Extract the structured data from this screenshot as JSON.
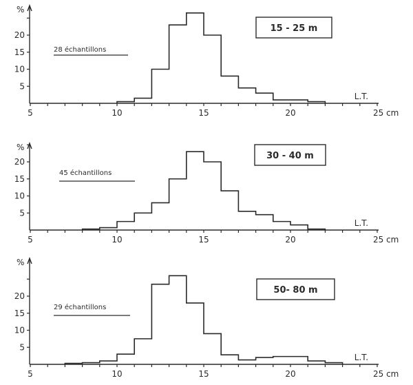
{
  "chart_data": [
    {
      "type": "bar",
      "subtype": "histogram-step",
      "title": "15 - 25 m",
      "annotation": "28 échantillons",
      "xlabel": "L.T.",
      "x_unit": "cm",
      "ylabel": "%",
      "xlim": [
        5,
        25
      ],
      "ylim": [
        0,
        27
      ],
      "x_tick_labels": [
        "5",
        "10",
        "15",
        "20",
        "25 cm"
      ],
      "y_tick_labels": [
        "5",
        "10",
        "15",
        "20"
      ],
      "bin_width": 1,
      "bins_start": [
        10,
        11,
        12,
        13,
        14,
        15,
        16,
        17,
        18,
        19,
        20,
        21
      ],
      "values": [
        0.5,
        1.5,
        10,
        23,
        26.5,
        20,
        8,
        4.5,
        3,
        1,
        1,
        0.5
      ]
    },
    {
      "type": "bar",
      "subtype": "histogram-step",
      "title": "30 - 40 m",
      "annotation": "45 échantillons",
      "xlabel": "L.T.",
      "x_unit": "cm",
      "ylabel": "%",
      "xlim": [
        5,
        25
      ],
      "ylim": [
        0,
        25
      ],
      "x_tick_labels": [
        "5",
        "10",
        "15",
        "20",
        "25 cm"
      ],
      "y_tick_labels": [
        "5",
        "10",
        "15",
        "20"
      ],
      "bin_width": 1,
      "bins_start": [
        8,
        9,
        10,
        11,
        12,
        13,
        14,
        15,
        16,
        17,
        18,
        19,
        20,
        21
      ],
      "values": [
        0.3,
        0.7,
        2.5,
        5,
        8,
        15,
        23,
        20,
        11.5,
        5.5,
        4.5,
        2.5,
        1.5,
        0.3
      ]
    },
    {
      "type": "bar",
      "subtype": "histogram-step",
      "title": "50- 80 m",
      "annotation": "29 échantillons",
      "xlabel": "L.T.",
      "x_unit": "cm",
      "ylabel": "%",
      "xlim": [
        5,
        25
      ],
      "ylim": [
        0,
        27
      ],
      "x_tick_labels": [
        "5",
        "10",
        "15",
        "20",
        "25 cm"
      ],
      "y_tick_labels": [
        "5",
        "10",
        "15",
        "20"
      ],
      "bin_width": 1,
      "bins_start": [
        7,
        8,
        9,
        10,
        11,
        12,
        13,
        14,
        15,
        16,
        17,
        18,
        19,
        20,
        21,
        22
      ],
      "values": [
        0.3,
        0.5,
        1,
        3,
        7.5,
        23.5,
        26,
        18,
        9,
        2.8,
        1.3,
        2,
        2.3,
        2.3,
        1,
        0.5
      ]
    }
  ],
  "panels": [
    {
      "title": "15 - 25 m",
      "samples": "28 échantillons",
      "xlabel": "L.T.",
      "ylabel": "%"
    },
    {
      "title": "30 - 40 m",
      "samples": "45 échantillons",
      "xlabel": "L.T.",
      "ylabel": "%"
    },
    {
      "title": "50- 80 m",
      "samples": "29 échantillons",
      "xlabel": "L.T.",
      "ylabel": "%"
    }
  ]
}
